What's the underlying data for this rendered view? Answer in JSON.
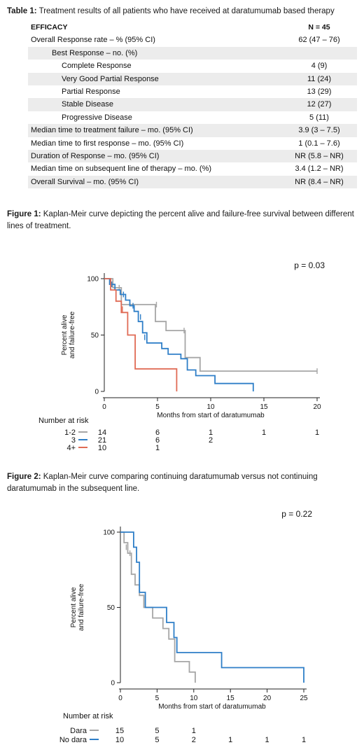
{
  "table": {
    "caption_bold": "Table 1:",
    "caption_text": " Treatment results of all patients who have received at daratumumab based therapy",
    "header": {
      "label": "EFFICACY",
      "value": "N = 45"
    },
    "rows": [
      {
        "label": "Overall Response rate – % (95% CI)",
        "value": "62 (47 – 76)",
        "indent": false
      },
      {
        "label": "Best Response – no. (%)",
        "value": "",
        "indent": "half"
      },
      {
        "label": "Complete Response",
        "value": "4 (9)",
        "indent": true
      },
      {
        "label": "Very Good Partial Response",
        "value": "11 (24)",
        "indent": true
      },
      {
        "label": "Partial Response",
        "value": "13 (29)",
        "indent": true
      },
      {
        "label": "Stable Disease",
        "value": "12 (27)",
        "indent": true
      },
      {
        "label": "Progressive Disease",
        "value": "5 (11)",
        "indent": true
      },
      {
        "label": "Median time to treatment failure – mo. (95% CI)",
        "value": "3.9 (3 – 7.5)",
        "indent": false
      },
      {
        "label": "Median time to first response – mo. (95% CI)",
        "value": "1 (0.1 – 7.6)",
        "indent": false
      },
      {
        "label": "Duration of Response – mo. (95% CI)",
        "value": "NR (5.8 – NR)",
        "indent": false
      },
      {
        "label": "Median time on subsequent line of therapy – mo. (%)",
        "value": "3.4 (1.2 – NR)",
        "indent": false
      },
      {
        "label": "Overall Survival – mo. (95% CI)",
        "value": "NR (8.4 – NR)",
        "indent": false
      }
    ]
  },
  "figure1": {
    "caption_bold": "Figure 1:",
    "caption_text": " Kaplan-Meir curve depicting the percent alive and failure-free survival between different lines of treatment."
  },
  "figure2": {
    "caption_bold": "Figure 2:",
    "caption_text": " Kaplan-Meir curve comparing continuing daratumumab versus not continuing daratumumab in the subsequent line."
  },
  "chart_data": [
    {
      "type": "line",
      "subtype": "kaplan-meier",
      "title": "",
      "annotation": "p = 0.03",
      "xlabel": "Months from start of daratumumab",
      "ylabel": "Percent alive and failure-free",
      "xlim": [
        0,
        20
      ],
      "ylim": [
        0,
        100
      ],
      "xticks": [
        0,
        5,
        10,
        15,
        20
      ],
      "yticks": [
        0,
        50,
        100
      ],
      "risk_table_title": "Number at risk",
      "risk_times": [
        0,
        5,
        10,
        15,
        20
      ],
      "series": [
        {
          "name": "1-2",
          "color": "#a6a6a6",
          "x": [
            0,
            0.8,
            0.8,
            1.6,
            1.6,
            4.8,
            4.8,
            5.8,
            5.8,
            7.6,
            7.6,
            9,
            9,
            20
          ],
          "y": [
            100,
            100,
            92,
            92,
            77,
            77,
            62,
            62,
            54,
            54,
            30,
            30,
            18,
            18
          ],
          "censor_x": [
            1.4,
            4.9,
            7.5,
            20
          ],
          "censor_y": [
            92,
            77,
            54,
            18
          ],
          "at_risk": [
            "14",
            "6",
            "1",
            "1",
            "1"
          ]
        },
        {
          "name": "3",
          "color": "#2f7fc8",
          "x": [
            0,
            0.5,
            0.5,
            1.0,
            1.0,
            1.5,
            1.5,
            2.0,
            2.0,
            2.4,
            2.4,
            2.8,
            2.8,
            3.2,
            3.2,
            3.6,
            3.6,
            4.0,
            4.0,
            5.4,
            5.4,
            6.0,
            6.0,
            7.2,
            7.2,
            7.8,
            7.8,
            8.6,
            8.6,
            10.4,
            10.4,
            14,
            14
          ],
          "y": [
            100,
            100,
            95,
            95,
            90,
            90,
            86,
            86,
            81,
            81,
            76,
            76,
            71,
            71,
            62,
            62,
            52,
            52,
            43,
            43,
            38,
            38,
            33,
            33,
            29,
            29,
            19,
            19,
            14,
            14,
            7,
            7,
            0
          ],
          "censor_x": [
            0.7,
            1.8,
            2.7,
            3.4,
            3.8
          ],
          "censor_y": [
            95,
            86,
            76,
            66,
            48
          ],
          "at_risk": [
            "21",
            "6",
            "2",
            "",
            ""
          ]
        },
        {
          "name": "4+",
          "color": "#e06b55",
          "x": [
            0,
            0.6,
            0.6,
            1.1,
            1.1,
            1.6,
            1.6,
            2.2,
            2.2,
            2.9,
            2.9,
            6.8,
            6.8
          ],
          "y": [
            100,
            100,
            90,
            90,
            80,
            80,
            70,
            70,
            50,
            50,
            20,
            20,
            0
          ],
          "censor_x": [
            1.7
          ],
          "censor_y": [
            73
          ],
          "at_risk": [
            "10",
            "1",
            "",
            "",
            ""
          ]
        }
      ]
    },
    {
      "type": "line",
      "subtype": "kaplan-meier",
      "title": "",
      "annotation": "p = 0.22",
      "xlabel": "Months from start of daratumumab",
      "ylabel": "Percent alive and failure-free",
      "xlim": [
        0,
        25
      ],
      "ylim": [
        0,
        100
      ],
      "xticks": [
        0,
        5,
        10,
        15,
        20,
        25
      ],
      "yticks": [
        0,
        50,
        100
      ],
      "risk_table_title": "Number at risk",
      "risk_times": [
        0,
        5,
        10,
        15,
        20,
        25
      ],
      "series": [
        {
          "name": "Dara",
          "color": "#a6a6a6",
          "x": [
            0,
            0.5,
            0.5,
            1.0,
            1.0,
            1.5,
            1.5,
            2.0,
            2.0,
            2.6,
            2.6,
            3.2,
            3.2,
            4.4,
            4.4,
            5.8,
            5.8,
            6.6,
            6.6,
            7.4,
            7.4,
            9.4,
            9.4,
            10.2,
            10.2
          ],
          "y": [
            100,
            100,
            93,
            93,
            86,
            86,
            72,
            72,
            65,
            65,
            58,
            58,
            50,
            50,
            43,
            43,
            36,
            36,
            29,
            29,
            14,
            14,
            7,
            7,
            0
          ],
          "censor_x": [
            0.8,
            1.3
          ],
          "censor_y": [
            90,
            86
          ],
          "at_risk": [
            "15",
            "5",
            "1",
            "",
            "",
            ""
          ]
        },
        {
          "name": "No dara",
          "color": "#2f7fc8",
          "x": [
            0,
            1.8,
            1.8,
            2.2,
            2.2,
            2.6,
            2.6,
            3.4,
            3.4,
            6.3,
            6.3,
            7.3,
            7.3,
            7.7,
            7.7,
            13.8,
            13.8,
            25,
            25
          ],
          "y": [
            100,
            100,
            90,
            90,
            80,
            80,
            60,
            60,
            50,
            50,
            40,
            40,
            30,
            30,
            20,
            20,
            10,
            10,
            0
          ],
          "censor_x": [],
          "censor_y": [],
          "at_risk": [
            "10",
            "5",
            "2",
            "1",
            "1",
            "1"
          ]
        }
      ]
    }
  ]
}
